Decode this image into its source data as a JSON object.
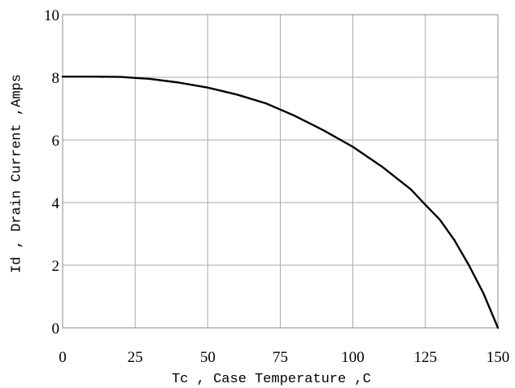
{
  "chart_data": {
    "type": "line",
    "xlabel": "Tc , Case Temperature ,C",
    "ylabel": "Id , Drain Current ,Amps",
    "xlim": [
      0,
      150
    ],
    "ylim": [
      0,
      10
    ],
    "x_ticks": [
      0,
      25,
      50,
      75,
      100,
      125,
      150
    ],
    "y_ticks": [
      0,
      2,
      4,
      6,
      8,
      10
    ],
    "grid": true,
    "series": [
      {
        "x": [
          0,
          10,
          20,
          25,
          30,
          40,
          50,
          60,
          70,
          75,
          80,
          90,
          100,
          110,
          120,
          125,
          130,
          135,
          140,
          145,
          150
        ],
        "y": [
          8.02,
          8.02,
          8.01,
          7.98,
          7.95,
          7.83,
          7.67,
          7.45,
          7.17,
          6.97,
          6.77,
          6.3,
          5.78,
          5.15,
          4.42,
          3.93,
          3.45,
          2.8,
          2.0,
          1.1,
          0.0
        ]
      }
    ],
    "colors": {
      "line": "#000000",
      "grid": "#a9a9a9",
      "background": "#ffffff"
    }
  }
}
